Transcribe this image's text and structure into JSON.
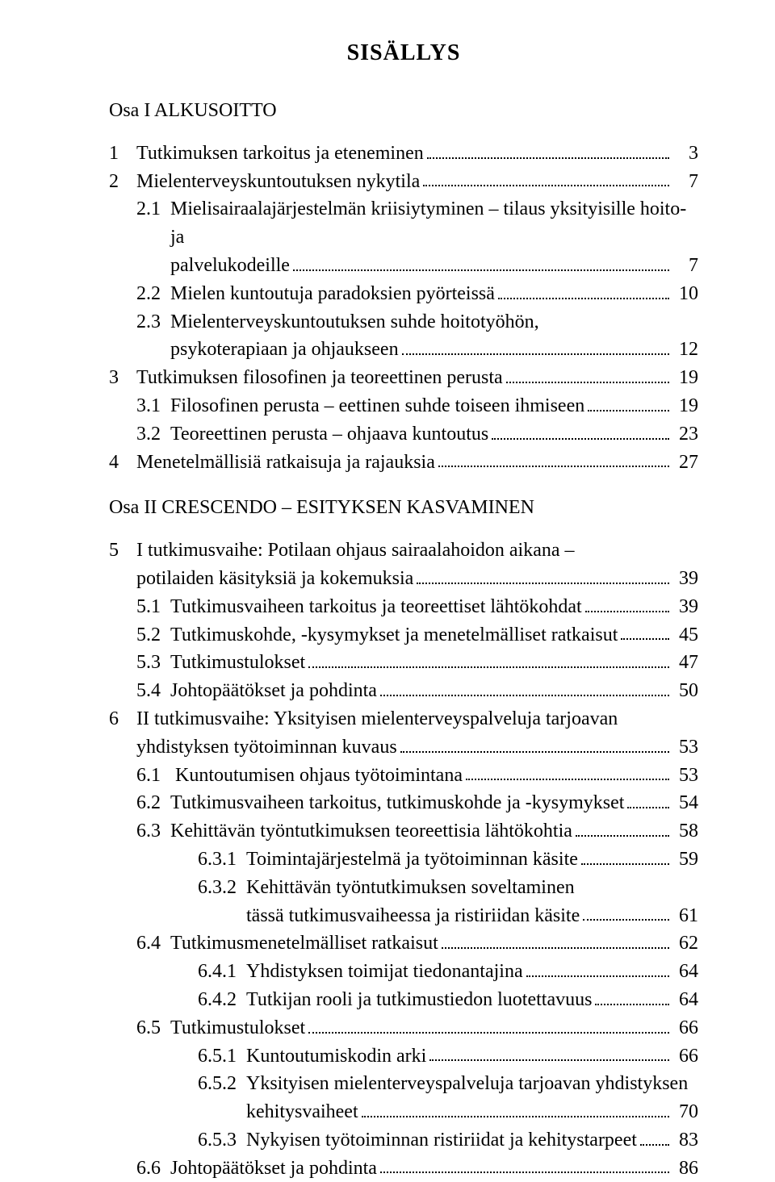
{
  "page": {
    "title": "SISÄLLYS",
    "font_family": "Times New Roman",
    "text_color": "#000000",
    "background_color": "#ffffff",
    "title_fontsize": 28,
    "body_fontsize": 24
  },
  "parts": [
    {
      "id": "p1",
      "label": "Osa I   ALKUSOITTO"
    },
    {
      "id": "p2",
      "label": "Osa II   CRESCENDO – ESITYKSEN KASVAMINEN"
    }
  ],
  "entries": [
    {
      "part": "p1",
      "level": 0,
      "num": "1",
      "text": "Tutkimuksen tarkoitus ja eteneminen",
      "page": "3"
    },
    {
      "part": "p1",
      "level": 0,
      "num": "2",
      "text": "Mielenterveyskuntoutuksen nykytila",
      "page": "7"
    },
    {
      "part": "p1",
      "level": 1,
      "num": "2.1",
      "text": "Mielisairaalajärjestelmän kriisiytyminen – tilaus yksityisille hoito- ja",
      "page": null,
      "cont": [
        {
          "text": "palvelukodeille",
          "page": "7"
        }
      ]
    },
    {
      "part": "p1",
      "level": 1,
      "num": "2.2",
      "text": "Mielen kuntoutuja paradoksien pyörteissä",
      "page": "10"
    },
    {
      "part": "p1",
      "level": 1,
      "num": "2.3",
      "text": "Mielenterveyskuntoutuksen suhde hoitotyöhön,",
      "page": null,
      "cont": [
        {
          "text": "psykoterapiaan ja ohjaukseen",
          "page": "12"
        }
      ]
    },
    {
      "part": "p1",
      "level": 0,
      "num": "3",
      "text": "Tutkimuksen filosofinen ja teoreettinen perusta",
      "page": "19"
    },
    {
      "part": "p1",
      "level": 1,
      "num": "3.1",
      "text": "Filosofinen perusta – eettinen suhde toiseen ihmiseen",
      "page": "19"
    },
    {
      "part": "p1",
      "level": 1,
      "num": "3.2",
      "text": "Teoreettinen perusta – ohjaava kuntoutus",
      "page": "23"
    },
    {
      "part": "p1",
      "level": 0,
      "num": "4",
      "text": "Menetelmällisiä ratkaisuja ja rajauksia",
      "page": "27"
    },
    {
      "part": "p2",
      "level": 0,
      "num": "5",
      "text": "I tutkimusvaihe: Potilaan ohjaus sairaalahoidon aikana –",
      "page": null,
      "cont": [
        {
          "level": 0,
          "text": "potilaiden käsityksiä ja kokemuksia",
          "page": "39"
        }
      ]
    },
    {
      "part": "p2",
      "level": 1,
      "num": "5.1",
      "text": "Tutkimusvaiheen tarkoitus ja teoreettiset lähtökohdat",
      "page": "39"
    },
    {
      "part": "p2",
      "level": 1,
      "num": "5.2",
      "text": "Tutkimuskohde, -kysymykset ja menetelmälliset ratkaisut",
      "page": "45"
    },
    {
      "part": "p2",
      "level": 1,
      "num": "5.3",
      "text": "Tutkimustulokset",
      "page": "47"
    },
    {
      "part": "p2",
      "level": 1,
      "num": "5.4",
      "text": "Johtopäätökset ja pohdinta",
      "page": "50"
    },
    {
      "part": "p2",
      "level": 0,
      "num": "6",
      "text": "II tutkimusvaihe: Yksityisen mielenterveyspalveluja tarjoavan",
      "page": null,
      "cont": [
        {
          "level": 0,
          "text": "yhdistyksen työtoiminnan kuvaus",
          "page": "53"
        }
      ]
    },
    {
      "part": "p2",
      "level": 1,
      "num": "6.1",
      "text": " Kuntoutumisen ohjaus työtoimintana",
      "page": "53"
    },
    {
      "part": "p2",
      "level": 1,
      "num": "6.2",
      "text": "Tutkimusvaiheen tarkoitus, tutkimuskohde ja -kysymykset",
      "page": "54"
    },
    {
      "part": "p2",
      "level": 1,
      "num": "6.3",
      "text": "Kehittävän työntutkimuksen teoreettisia lähtökohtia",
      "page": "58"
    },
    {
      "part": "p2",
      "level": 2,
      "num": "6.3.1",
      "text": "Toimintajärjestelmä ja työtoiminnan käsite",
      "page": "59"
    },
    {
      "part": "p2",
      "level": 2,
      "num": "6.3.2",
      "text": "Kehittävän työntutkimuksen soveltaminen",
      "page": null,
      "cont": [
        {
          "level": 2,
          "text": "tässä tutkimusvaiheessa ja ristiriidan käsite",
          "page": "61"
        }
      ]
    },
    {
      "part": "p2",
      "level": 1,
      "num": "6.4",
      "text": "Tutkimusmenetelmälliset ratkaisut",
      "page": "62"
    },
    {
      "part": "p2",
      "level": 2,
      "num": "6.4.1",
      "text": "Yhdistyksen toimijat tiedonantajina",
      "page": "64"
    },
    {
      "part": "p2",
      "level": 2,
      "num": "6.4.2",
      "text": "Tutkijan rooli ja tutkimustiedon luotettavuus",
      "page": "64"
    },
    {
      "part": "p2",
      "level": 1,
      "num": "6.5",
      "text": "Tutkimustulokset",
      "page": "66"
    },
    {
      "part": "p2",
      "level": 2,
      "num": "6.5.1",
      "text": "Kuntoutumiskodin arki",
      "page": "66"
    },
    {
      "part": "p2",
      "level": 2,
      "num": "6.5.2",
      "text": "Yksityisen mielenterveyspalveluja tarjoavan yhdistyksen",
      "page": null,
      "cont": [
        {
          "level": 2,
          "text": "kehitysvaiheet",
          "page": "70"
        }
      ]
    },
    {
      "part": "p2",
      "level": 2,
      "num": "6.5.3",
      "text": "Nykyisen työtoiminnan ristiriidat ja kehitystarpeet",
      "page": "83"
    },
    {
      "part": "p2",
      "level": 1,
      "num": "6.6",
      "text": "Johtopäätökset ja pohdinta",
      "page": "86"
    }
  ]
}
